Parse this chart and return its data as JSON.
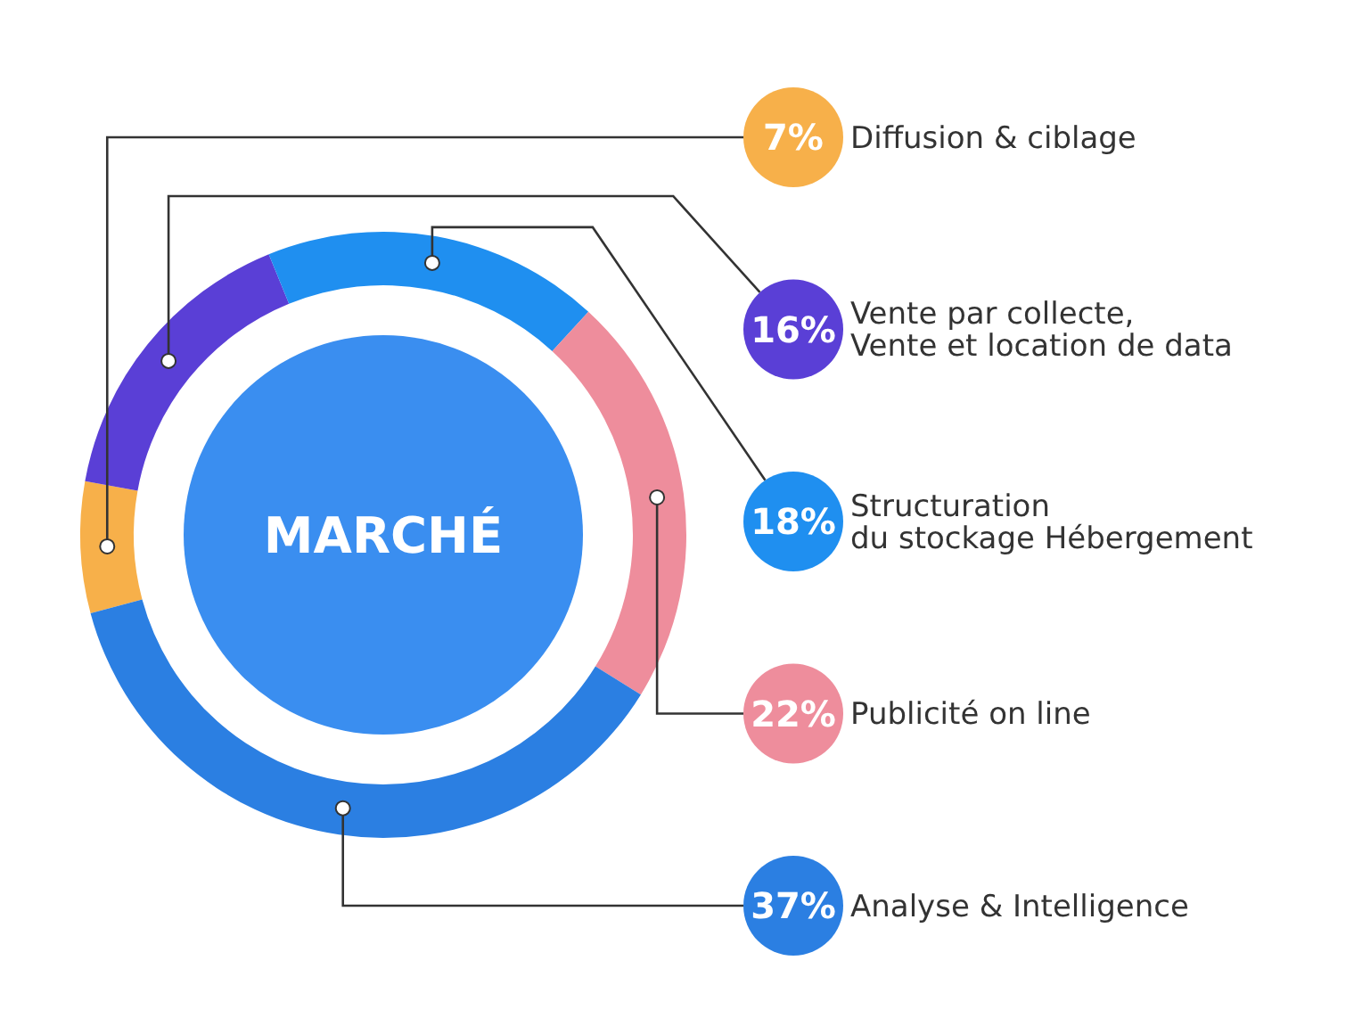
{
  "chart_data": {
    "type": "donut",
    "title": "MARCHÉ",
    "categories": [
      "Diffusion & ciblage",
      "Vente par collecte,\nVente et location de data",
      "Structuration\ndu stockage Hébergement",
      "Publicité on line",
      "Analyse & Intelligence"
    ],
    "values": [
      7,
      16,
      18,
      22,
      37
    ],
    "value_labels": [
      "7%",
      "16%",
      "18%",
      "22%",
      "37%"
    ],
    "colors": [
      "#f7b04a",
      "#5a3fd6",
      "#1f8ff0",
      "#ee8d9c",
      "#2b7fe2"
    ]
  }
}
